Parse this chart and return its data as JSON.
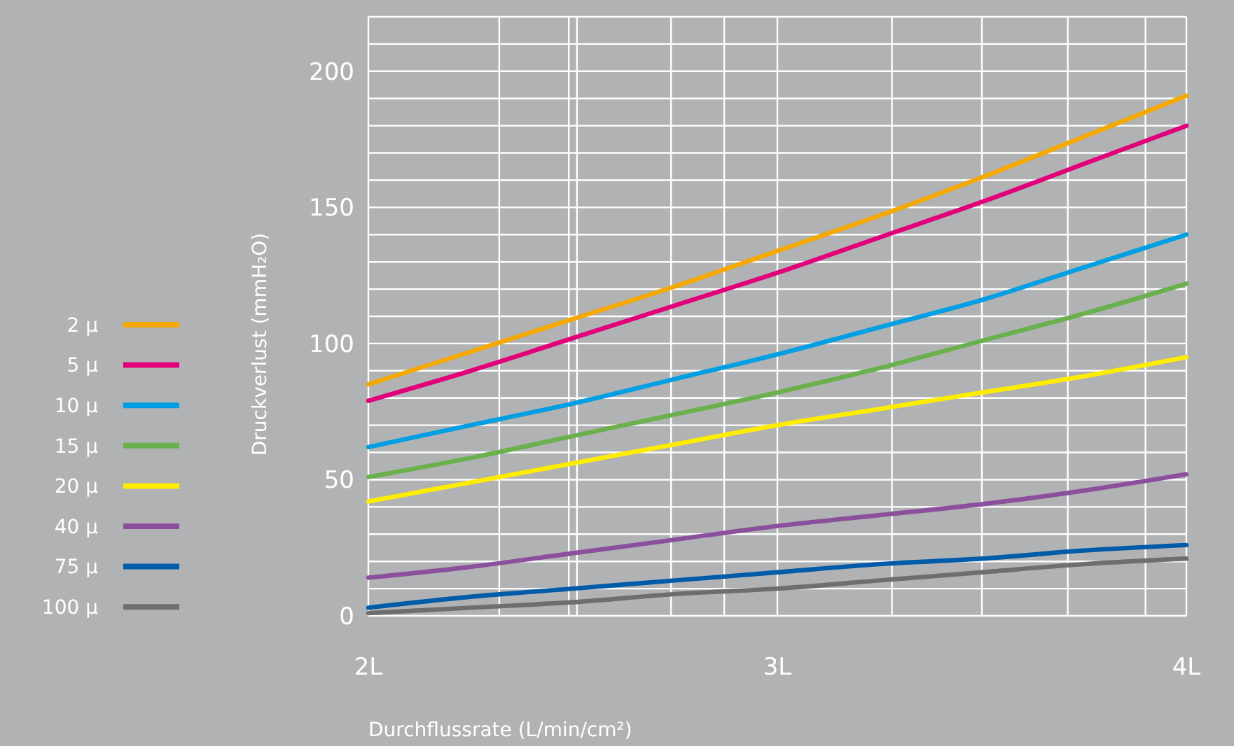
{
  "chart_data": {
    "type": "line",
    "xlabel": "Durchflussrate (L/min/cm²)",
    "ylabel": "Druckverlust (mmH₂O)",
    "x": [
      2,
      2.25,
      2.5,
      2.75,
      3,
      3.25,
      3.5,
      3.75,
      4
    ],
    "xlim": [
      2,
      4
    ],
    "xticks": [
      {
        "value": 2,
        "label": "2L"
      },
      {
        "value": 2.32,
        "label": null
      },
      {
        "value": 2.49,
        "label": null
      },
      {
        "value": 2.51,
        "label": null
      },
      {
        "value": 2.74,
        "label": null
      },
      {
        "value": 2.87,
        "label": null
      },
      {
        "value": 3,
        "label": "3L"
      },
      {
        "value": 3.28,
        "label": null
      },
      {
        "value": 3.5,
        "label": null
      },
      {
        "value": 3.71,
        "label": null
      },
      {
        "value": 3.9,
        "label": null
      },
      {
        "value": 4,
        "label": "4L"
      }
    ],
    "ylim": [
      0,
      220
    ],
    "yticks": [
      0,
      50,
      100,
      150,
      200
    ],
    "grid": true,
    "legend": "left",
    "line_style": "solid",
    "marker": "none",
    "series": [
      {
        "name": "2 µ",
        "color": "#f5a800",
        "values": [
          85,
          97,
          109,
          121,
          134,
          147,
          161,
          176,
          191
        ]
      },
      {
        "name": "5 µ",
        "color": "#e2007a",
        "values": [
          79,
          90,
          102,
          114,
          126,
          139,
          152,
          166,
          180
        ]
      },
      {
        "name": "10 µ",
        "color": "#009fe3",
        "values": [
          62,
          70,
          78,
          87,
          96,
          106,
          116,
          128,
          140
        ]
      },
      {
        "name": "15 µ",
        "color": "#6ab04c",
        "values": [
          51,
          58,
          66,
          74,
          82,
          91,
          101,
          111,
          122
        ]
      },
      {
        "name": "20 µ",
        "color": "#ffed00",
        "values": [
          42,
          49,
          56,
          63,
          70,
          76,
          82,
          88,
          95
        ]
      },
      {
        "name": "40 µ",
        "color": "#8b4f9b",
        "values": [
          14,
          18,
          23,
          28,
          33,
          37,
          41,
          46,
          52
        ]
      },
      {
        "name": "75 µ",
        "color": "#005ca9",
        "values": [
          3,
          7,
          10,
          13,
          16,
          19,
          21,
          24,
          26
        ]
      },
      {
        "name": "100 µ",
        "color": "#6d6e70",
        "values": [
          1,
          3,
          5,
          8,
          10,
          13,
          16,
          19,
          21
        ]
      }
    ]
  }
}
